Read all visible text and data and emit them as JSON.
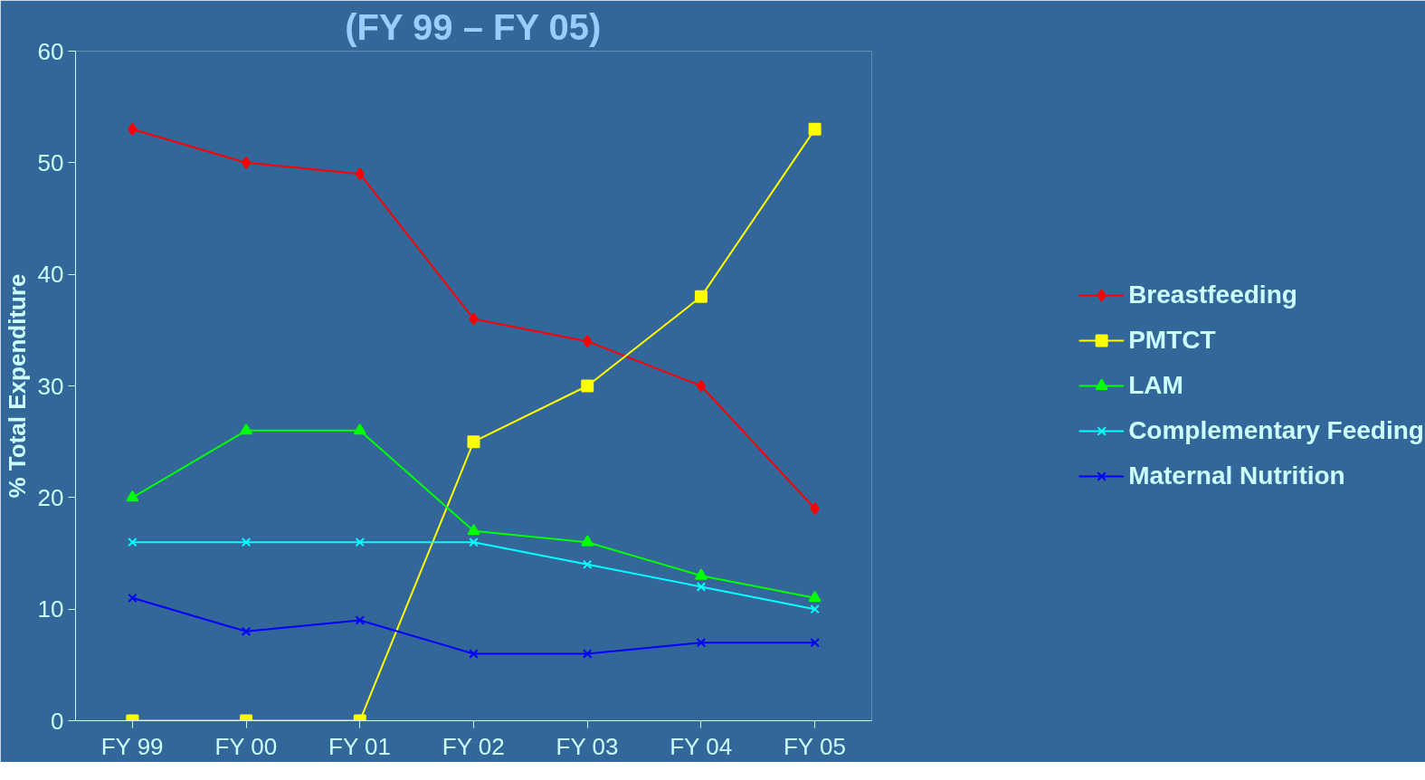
{
  "chart_data": {
    "type": "line",
    "title": "(FY 99 – FY 05)",
    "ylabel": "% Total Expenditure",
    "categories": [
      "FY 99",
      "FY 00",
      "FY 01",
      "FY 02",
      "FY 03",
      "FY 04",
      "FY 05"
    ],
    "ylim": [
      0,
      60
    ],
    "yticks": [
      0,
      10,
      20,
      30,
      40,
      50,
      60
    ],
    "grid": false,
    "legend": "right",
    "series": [
      {
        "name": "Breastfeeding",
        "color": "#ff0000",
        "marker": "diamond",
        "values": [
          53,
          50,
          49,
          36,
          34,
          30,
          19
        ]
      },
      {
        "name": "PMTCT",
        "color": "#ffff00",
        "marker": "square",
        "values": [
          0,
          0,
          0,
          25,
          30,
          38,
          53
        ]
      },
      {
        "name": "LAM",
        "color": "#00ff00",
        "marker": "triangle",
        "values": [
          20,
          26,
          26,
          17,
          16,
          13,
          11
        ]
      },
      {
        "name": "Complementary Feeding",
        "color": "#00ffff",
        "marker": "cross",
        "values": [
          16,
          16,
          16,
          16,
          14,
          12,
          10
        ]
      },
      {
        "name": "Maternal Nutrition",
        "color": "#0000ff",
        "marker": "cross",
        "values": [
          11,
          8,
          9,
          6,
          6,
          7,
          7
        ]
      }
    ]
  }
}
